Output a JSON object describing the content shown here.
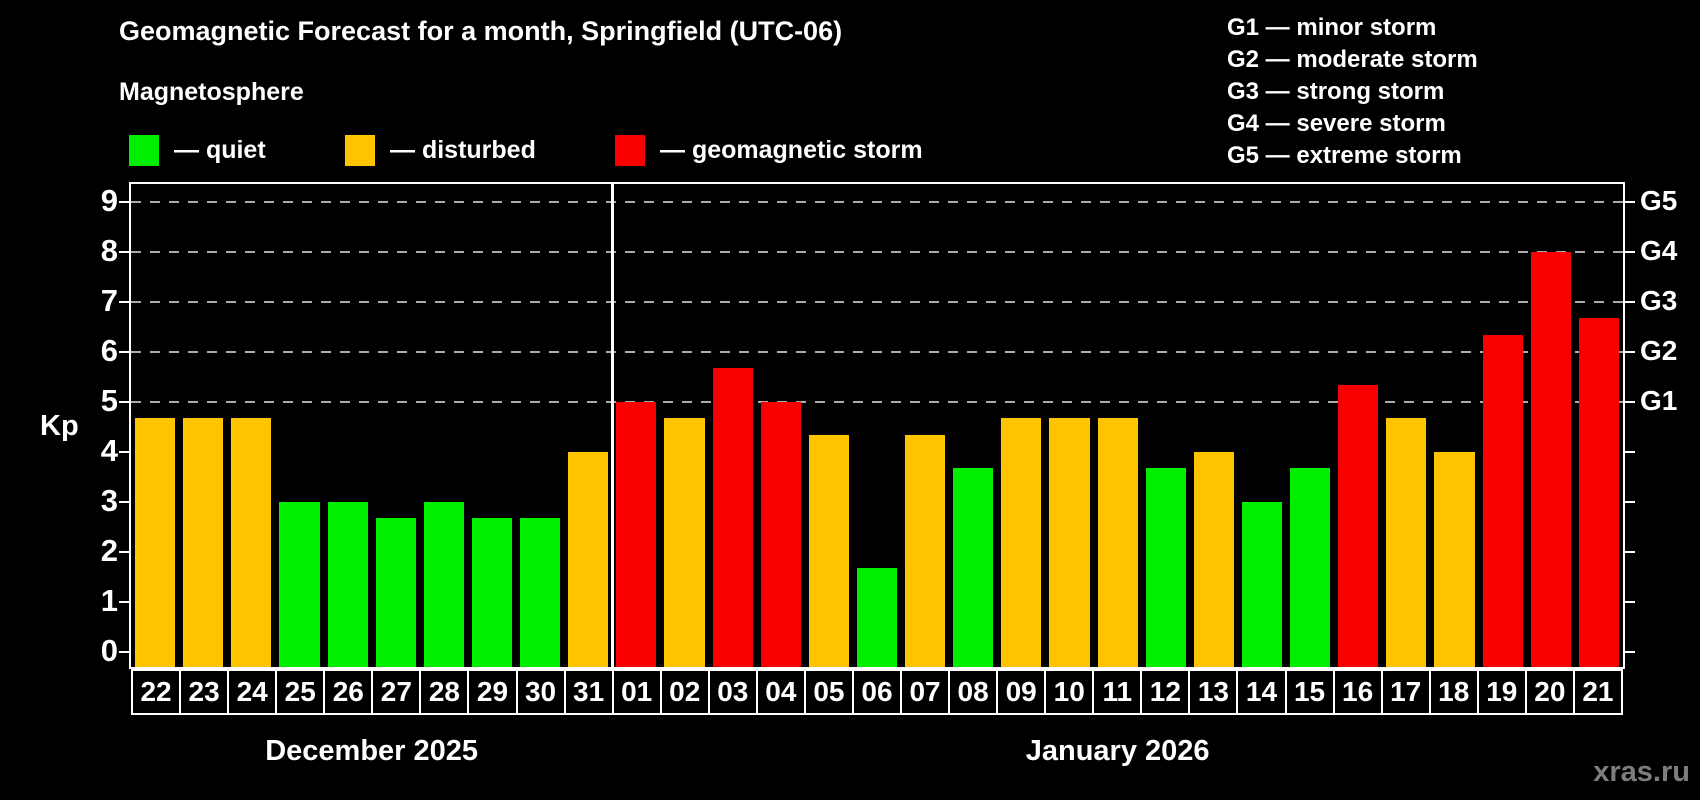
{
  "header": {
    "title": "Geomagnetic Forecast for a month, Springfield (UTC-06)",
    "subtitle": "Magnetosphere"
  },
  "legend": {
    "items": [
      {
        "status": "quiet",
        "label": "— quiet"
      },
      {
        "status": "disturbed",
        "label": "— disturbed"
      },
      {
        "status": "storm",
        "label": "— geomagnetic storm"
      }
    ]
  },
  "g_legend": {
    "lines": [
      "G1 — minor storm",
      "G2 — moderate storm",
      "G3 — strong storm",
      "G4 — severe storm",
      "G5 — extreme storm"
    ]
  },
  "axes": {
    "y_label": "Kp",
    "y_ticks": [
      0,
      1,
      2,
      3,
      4,
      5,
      6,
      7,
      8,
      9
    ],
    "right_labels": [
      {
        "kp": 5,
        "label": "G1"
      },
      {
        "kp": 6,
        "label": "G2"
      },
      {
        "kp": 7,
        "label": "G3"
      },
      {
        "kp": 8,
        "label": "G4"
      },
      {
        "kp": 9,
        "label": "G5"
      }
    ]
  },
  "colors": {
    "quiet": "#00ee00",
    "disturbed": "#ffc400",
    "storm": "#f80000",
    "gridline": "#aaaaaa",
    "axis": "#ffffff",
    "background": "#000000",
    "watermark": "#7d7d7d"
  },
  "watermark": "xras.ru",
  "chart_data": {
    "type": "bar",
    "title": "Geomagnetic Forecast for a month, Springfield (UTC-06)",
    "subtitle": "Magnetosphere",
    "ylabel": "Kp",
    "ylim": [
      -0.35,
      9.35
    ],
    "grid": "dashed horizontal at Kp 5-9 only",
    "gridlines_at": [
      5,
      6,
      7,
      8,
      9
    ],
    "categories": [
      "22",
      "23",
      "24",
      "25",
      "26",
      "27",
      "28",
      "29",
      "30",
      "31",
      "01",
      "02",
      "03",
      "04",
      "05",
      "06",
      "07",
      "08",
      "09",
      "10",
      "11",
      "12",
      "13",
      "14",
      "15",
      "16",
      "17",
      "18",
      "19",
      "20",
      "21"
    ],
    "values": [
      4.67,
      4.67,
      4.67,
      3,
      3,
      2.67,
      3,
      2.67,
      2.67,
      4,
      5,
      4.67,
      5.67,
      5,
      4.33,
      1.67,
      4.33,
      3.67,
      4.67,
      4.67,
      4.67,
      3.67,
      4,
      3,
      3.67,
      5.33,
      4.67,
      4,
      6.33,
      8,
      6.67
    ],
    "statuses": [
      "disturbed",
      "disturbed",
      "disturbed",
      "quiet",
      "quiet",
      "quiet",
      "quiet",
      "quiet",
      "quiet",
      "disturbed",
      "storm",
      "disturbed",
      "storm",
      "storm",
      "disturbed",
      "quiet",
      "disturbed",
      "quiet",
      "disturbed",
      "disturbed",
      "disturbed",
      "quiet",
      "disturbed",
      "quiet",
      "quiet",
      "storm",
      "disturbed",
      "disturbed",
      "storm",
      "storm",
      "storm"
    ],
    "month_separator_after_index": 9,
    "months": [
      {
        "label": "December 2025",
        "start": 0,
        "end": 9
      },
      {
        "label": "January 2026",
        "start": 10,
        "end": 30
      }
    ]
  }
}
